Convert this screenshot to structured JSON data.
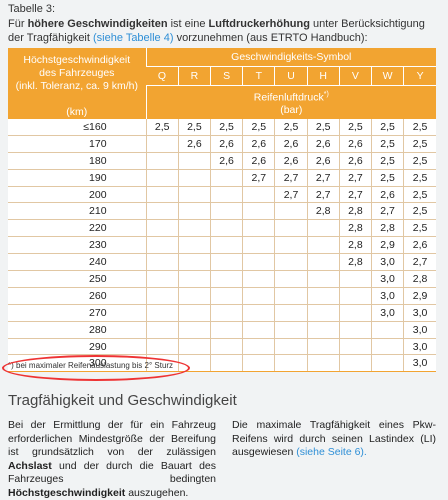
{
  "caption": "Tabelle 3:",
  "intro": {
    "p1": "Für ",
    "b1": "höhere Geschwindigkeiten",
    "p2": " ist eine ",
    "b2": "Luftdruckerhöhung",
    "p3": " unter Berücksichtigung der Tragfähigkeit ",
    "link": "(siehe Tabelle 4)",
    "p4": " vorzunehmen (aus ETRTO Handbuch):"
  },
  "table": {
    "left_header_line1": "Höchstgeschwindigkeit",
    "left_header_line2": "des Fahrzeuges",
    "left_header_line3": "(inkl. Toleranz, ca. 9 km/h)",
    "left_header_unit": "(km)",
    "symbol_title": "Geschwindigkeits-Symbol",
    "symbols": [
      "Q",
      "R",
      "S",
      "T",
      "U",
      "H",
      "V",
      "W",
      "Y"
    ],
    "pressure_title": "Reifenluftdruck",
    "pressure_sup": "*)",
    "pressure_unit": "(bar)",
    "rows": [
      [
        "≤160",
        "2,5",
        "2,5",
        "2,5",
        "2,5",
        "2,5",
        "2,5",
        "2,5",
        "2,5",
        "2,5"
      ],
      [
        "170",
        "",
        "2,6",
        "2,6",
        "2,6",
        "2,6",
        "2,6",
        "2,6",
        "2,5",
        "2,5"
      ],
      [
        "180",
        "",
        "",
        "2,6",
        "2,6",
        "2,6",
        "2,6",
        "2,6",
        "2,5",
        "2,5"
      ],
      [
        "190",
        "",
        "",
        "",
        "2,7",
        "2,7",
        "2,7",
        "2,7",
        "2,5",
        "2,5"
      ],
      [
        "200",
        "",
        "",
        "",
        "",
        "2,7",
        "2,7",
        "2,7",
        "2,6",
        "2,5"
      ],
      [
        "210",
        "",
        "",
        "",
        "",
        "",
        "2,8",
        "2,8",
        "2,7",
        "2,5"
      ],
      [
        "220",
        "",
        "",
        "",
        "",
        "",
        "",
        "2,8",
        "2,8",
        "2,5"
      ],
      [
        "230",
        "",
        "",
        "",
        "",
        "",
        "",
        "2,8",
        "2,9",
        "2,6"
      ],
      [
        "240",
        "",
        "",
        "",
        "",
        "",
        "",
        "2,8",
        "3,0",
        "2,7"
      ],
      [
        "250",
        "",
        "",
        "",
        "",
        "",
        "",
        "",
        "3,0",
        "2,8"
      ],
      [
        "260",
        "",
        "",
        "",
        "",
        "",
        "",
        "",
        "3,0",
        "2,9"
      ],
      [
        "270",
        "",
        "",
        "",
        "",
        "",
        "",
        "",
        "3,0",
        "3,0"
      ],
      [
        "280",
        "",
        "",
        "",
        "",
        "",
        "",
        "",
        "",
        "3,0"
      ],
      [
        "290",
        "",
        "",
        "",
        "",
        "",
        "",
        "",
        "",
        "3,0"
      ],
      [
        "300",
        "",
        "",
        "",
        "",
        "",
        "",
        "",
        "",
        "3,0"
      ]
    ]
  },
  "footnote": "*) bei maximaler Reifenauslastung bis 2° Sturz",
  "section": {
    "title": "Tragfähigkeit und Geschwindigkeit",
    "left": {
      "t1": "Bei der Ermittlung der für ein Fahrzeug erforderlichen Mindestgröße der Bereifung ist grundsätzlich von der zulässigen ",
      "b1": "Achslast",
      "t2": " und der durch die Bauart des Fahrzeuges bedingten ",
      "b2": "Höchstgeschwindigkeit",
      "t3": " auszugehen."
    },
    "right": {
      "t1": "Die maximale Tragfähigkeit eines Pkw-Reifens wird durch seinen Lastindex (LI) ausgewiesen ",
      "link": "(siehe Seite 6)."
    }
  },
  "colors": {
    "header_orange": "#f2a431",
    "link_blue": "#2f8fd6",
    "annotation_red": "#e33"
  }
}
